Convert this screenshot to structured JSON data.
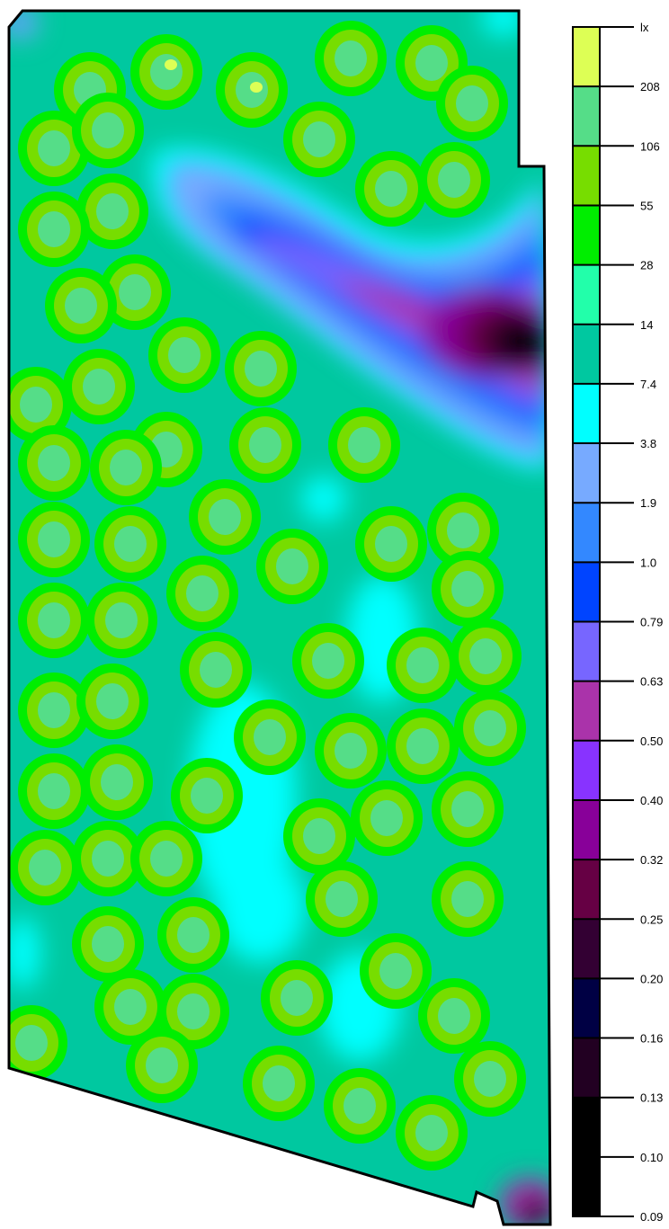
{
  "chart_data": {
    "type": "heatmap",
    "title": "",
    "unit": "lx",
    "legend": "right",
    "scale": "log",
    "levels": [
      0.09,
      0.1,
      0.13,
      0.16,
      0.2,
      0.25,
      0.32,
      0.4,
      0.5,
      0.63,
      0.79,
      1.0,
      1.9,
      3.8,
      7.4,
      14,
      28,
      55,
      106,
      208
    ],
    "tick_labels": [
      "lx",
      "208",
      "106",
      "55",
      "28",
      "14",
      "7.4",
      "3.8",
      "1.9",
      "1.0",
      "0.79",
      "0.63",
      "0.50",
      "0.40",
      "0.32",
      "0.25",
      "0.20",
      "0.16",
      "0.13",
      "0.10",
      "0.09"
    ],
    "band_colors": [
      "#ddff55",
      "#55dd88",
      "#77dd00",
      "#00ee00",
      "#22ffaa",
      "#00c8a0",
      "#00ffff",
      "#77aaff",
      "#3388ff",
      "#0044ff",
      "#7766ff",
      "#aa33aa",
      "#8833ff",
      "#880099",
      "#660044",
      "#330033",
      "#000044",
      "#220022",
      "#000000",
      "#000000"
    ]
  }
}
